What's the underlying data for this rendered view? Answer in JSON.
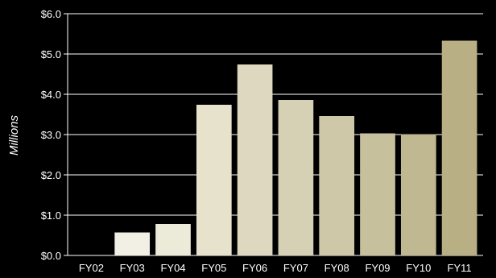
{
  "chart_data": {
    "type": "bar",
    "title": "",
    "xlabel": "",
    "ylabel": "Millions",
    "categories": [
      "FY02",
      "FY03",
      "FY04",
      "FY05",
      "FY06",
      "FY07",
      "FY08",
      "FY09",
      "FY10",
      "FY11"
    ],
    "values": [
      0.0,
      0.57,
      0.78,
      3.74,
      4.74,
      3.86,
      3.46,
      3.03,
      3.01,
      5.33
    ],
    "ylim": [
      0,
      6
    ],
    "yticks": [
      {
        "value": 0,
        "label": "$0.0"
      },
      {
        "value": 1,
        "label": "$1.0"
      },
      {
        "value": 2,
        "label": "$2.0"
      },
      {
        "value": 3,
        "label": "$3.0"
      },
      {
        "value": 4,
        "label": "$4.0"
      },
      {
        "value": 5,
        "label": "$5.0"
      },
      {
        "value": 6,
        "label": "$6.0"
      }
    ],
    "grid": true,
    "colors": {
      "background": "#000000",
      "gridline": "#ffffff",
      "bars": [
        "#f6f4ec",
        "#f2f0e4",
        "#ecead9",
        "#e6e2cc",
        "#ddd8bf",
        "#d6d0b4",
        "#cfc8a8",
        "#c7c09c",
        "#bfb891",
        "#b8b084"
      ]
    }
  }
}
